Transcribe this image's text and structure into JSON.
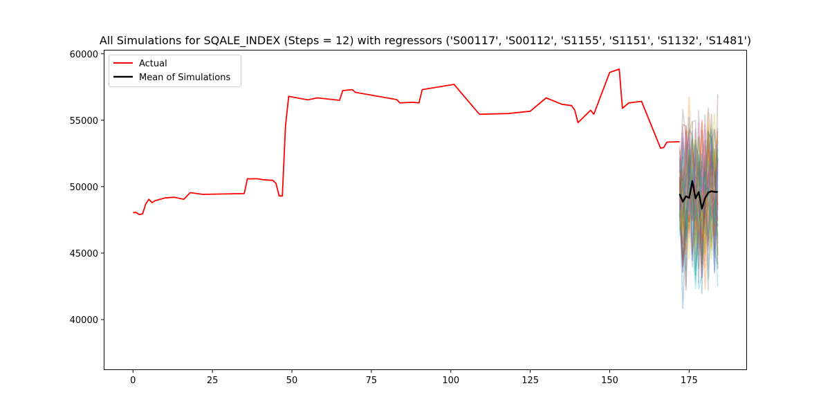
{
  "chart_data": {
    "type": "line",
    "title": "All Simulations for SQALE_INDEX (Steps = 12) with regressors ('S00117', 'S00112', 'S1155', 'S1151', 'S1132', 'S1481')",
    "xlabel": "",
    "ylabel": "",
    "xlim": [
      -9.2,
      193.2
    ],
    "ylim": [
      36200,
      60300
    ],
    "x_ticks": [
      0,
      25,
      50,
      75,
      100,
      125,
      150,
      175
    ],
    "y_ticks": [
      40000,
      45000,
      50000,
      55000,
      60000
    ],
    "grid": false,
    "legend": {
      "placement": "top-left",
      "entries": [
        "Actual",
        "Mean of Simulations"
      ]
    },
    "series": [
      {
        "name": "Actual",
        "color": "#ff0000",
        "x": [
          0,
          1,
          2,
          3,
          4,
          5,
          6,
          7,
          10,
          13,
          16,
          18,
          22,
          35,
          36,
          37,
          39,
          41,
          44,
          45,
          46,
          47,
          48,
          49,
          55,
          58,
          65,
          66,
          69,
          70,
          83,
          84,
          88,
          90,
          91,
          101,
          109,
          118,
          125,
          130,
          135,
          138,
          139,
          140,
          144,
          145,
          150,
          153,
          154,
          156,
          160,
          166,
          167,
          168,
          172
        ],
        "values": [
          48050,
          48060,
          47900,
          47950,
          48700,
          49050,
          48800,
          48950,
          49150,
          49200,
          49050,
          49550,
          49420,
          49480,
          50600,
          50580,
          50600,
          50520,
          50480,
          50250,
          49300,
          49300,
          54600,
          56800,
          56530,
          56680,
          56500,
          57230,
          57300,
          57100,
          56550,
          56300,
          56350,
          56300,
          57300,
          57700,
          55450,
          55500,
          55680,
          56680,
          56200,
          56100,
          55750,
          54820,
          55750,
          55450,
          58600,
          58850,
          55900,
          56300,
          56420,
          52900,
          52950,
          53350,
          53380
        ]
      },
      {
        "name": "Mean of Simulations",
        "color": "#000000",
        "x": [
          172,
          173,
          174,
          175,
          176,
          177,
          178,
          179,
          180,
          181,
          182,
          183,
          184
        ],
        "values": [
          49450,
          48870,
          49280,
          49150,
          50420,
          49120,
          49600,
          48350,
          49120,
          49550,
          49660,
          49610,
          49610
        ]
      }
    ],
    "simulation_colors": [
      "#1f77b4",
      "#ff7f0e",
      "#2ca02c",
      "#d62728",
      "#9467bd",
      "#8c564b",
      "#e377c2",
      "#7f7f7f",
      "#bcbd22",
      "#17becf"
    ]
  }
}
